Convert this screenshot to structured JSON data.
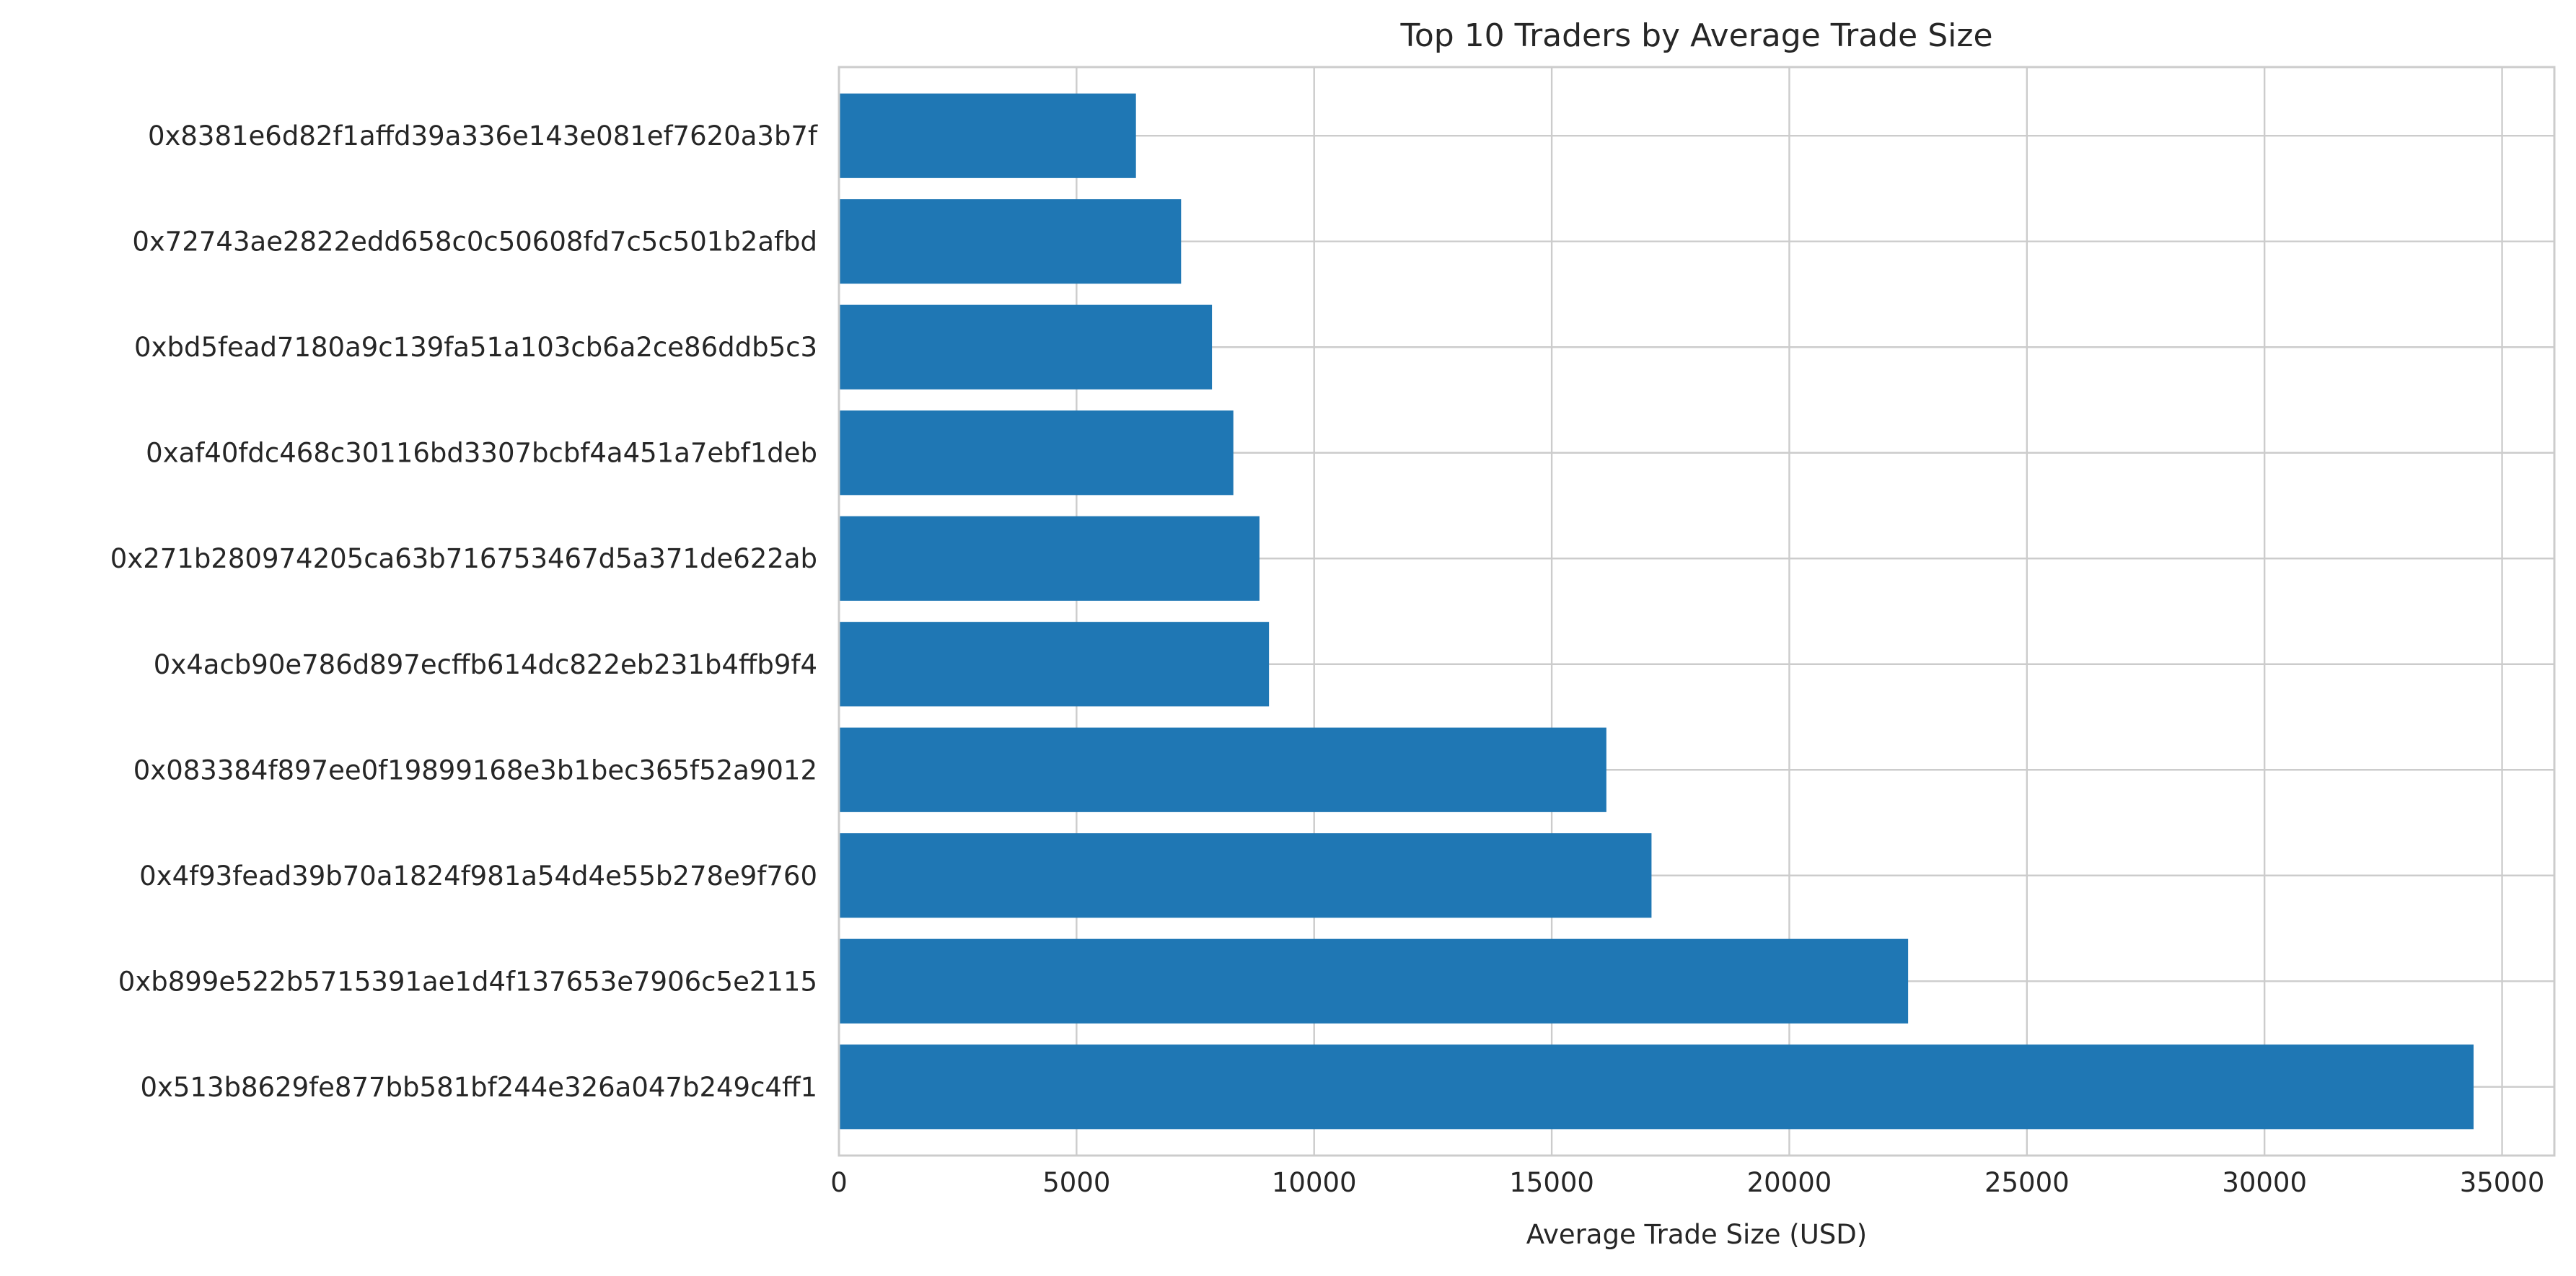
{
  "chart_data": {
    "type": "bar",
    "orientation": "horizontal",
    "title": "Top 10 Traders by Average Trade Size",
    "xlabel": "Average Trade Size (USD)",
    "ylabel": "",
    "xlim": [
      0,
      36100
    ],
    "xticks": [
      0,
      5000,
      10000,
      15000,
      20000,
      25000,
      30000,
      35000
    ],
    "grid": true,
    "bar_color": "#1f77b4",
    "categories": [
      "0x8381e6d82f1affd39a336e143e081ef7620a3b7f",
      "0x72743ae2822edd658c0c50608fd7c5c501b2afbd",
      "0xbd5fead7180a9c139fa51a103cb6a2ce86ddb5c3",
      "0xaf40fdc468c30116bd3307bcbf4a451a7ebf1deb",
      "0x271b280974205ca63b716753467d5a371de622ab",
      "0x4acb90e786d897ecffb614dc822eb231b4ffb9f4",
      "0x083384f897ee0f19899168e3b1bec365f52a9012",
      "0x4f93fead39b70a1824f981a54d4e55b278e9f760",
      "0xb899e522b5715391ae1d4f137653e7906c5e2115",
      "0x513b8629fe877bb581bf244e326a047b249c4ff1"
    ],
    "values": [
      6250,
      7200,
      7850,
      8300,
      8850,
      9050,
      16150,
      17100,
      22500,
      34400
    ]
  }
}
